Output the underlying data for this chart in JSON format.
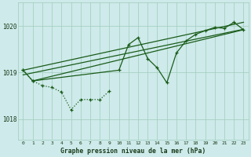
{
  "bg_color": "#ceeaea",
  "grid_color": "#a0ccbb",
  "line_color": "#1a5c1a",
  "xlabel": "Graphe pression niveau de la mer (hPa)",
  "yticks": [
    1018,
    1019,
    1020
  ],
  "ylim": [
    1017.55,
    1020.5
  ],
  "xlim": [
    -0.5,
    23.5
  ],
  "xtick_labels": [
    "0",
    "1",
    "2",
    "3",
    "4",
    "5",
    "6",
    "7",
    "8",
    "9",
    "10",
    "11",
    "12",
    "13",
    "14",
    "15",
    "16",
    "17",
    "18",
    "19",
    "20",
    "21",
    "22",
    "23"
  ],
  "series_dotted_x": [
    0,
    1,
    2,
    3,
    4,
    5,
    6,
    7,
    8,
    9
  ],
  "series_dotted_y": [
    1019.05,
    1018.82,
    1018.72,
    1018.68,
    1018.58,
    1018.2,
    1018.42,
    1018.42,
    1018.42,
    1018.6
  ],
  "series_main_x": [
    0,
    1,
    10,
    11,
    12,
    13,
    14,
    15,
    16,
    17,
    18,
    19,
    20,
    21,
    22,
    23
  ],
  "series_main_y": [
    1019.05,
    1018.82,
    1019.05,
    1019.6,
    1019.75,
    1019.3,
    1019.1,
    1018.78,
    1019.42,
    1019.68,
    1019.82,
    1019.9,
    1019.97,
    1019.95,
    1020.08,
    1019.92
  ],
  "trend1_x": [
    0,
    23
  ],
  "trend1_y": [
    1018.95,
    1019.93
  ],
  "trend2_x": [
    0,
    23
  ],
  "trend2_y": [
    1019.05,
    1020.08
  ],
  "trend3_x": [
    1,
    23
  ],
  "trend3_y": [
    1018.82,
    1019.92
  ]
}
